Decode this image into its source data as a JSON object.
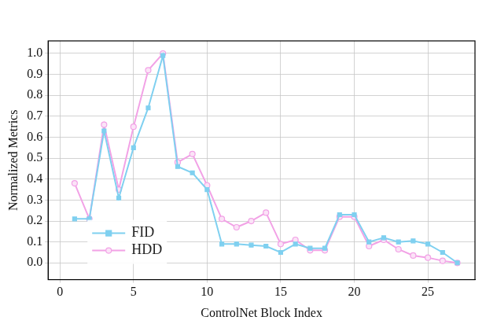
{
  "chart_data": {
    "type": "line",
    "x_label": "ControlNet Block Index",
    "y_label": "Normalized Metrics",
    "x": [
      1,
      2,
      3,
      4,
      5,
      6,
      7,
      8,
      9,
      10,
      11,
      12,
      13,
      14,
      15,
      16,
      17,
      18,
      19,
      20,
      21,
      22,
      23,
      24,
      25,
      26,
      27
    ],
    "series": [
      {
        "name": "FID",
        "color": "#7fd0f0",
        "marker": "square",
        "line_style": "solid",
        "values": [
          0.21,
          0.21,
          0.63,
          0.31,
          0.55,
          0.74,
          0.99,
          0.46,
          0.43,
          0.35,
          0.09,
          0.09,
          0.085,
          0.08,
          0.05,
          0.09,
          0.07,
          0.07,
          0.23,
          0.23,
          0.1,
          0.12,
          0.1,
          0.105,
          0.09,
          0.05,
          0.0
        ]
      },
      {
        "name": "HDD",
        "color": "#f2a2e6",
        "marker": "circle",
        "line_style": "solid",
        "values": [
          0.38,
          0.21,
          0.66,
          0.35,
          0.65,
          0.92,
          1.0,
          0.48,
          0.52,
          0.37,
          0.21,
          0.17,
          0.2,
          0.24,
          0.09,
          0.11,
          0.06,
          0.06,
          0.22,
          0.22,
          0.08,
          0.11,
          0.065,
          0.035,
          0.025,
          0.01,
          0.0
        ]
      }
    ],
    "xlim": [
      -0.8,
      28.2
    ],
    "xticks": [
      0,
      5,
      10,
      15,
      20,
      25
    ],
    "ylim": [
      -0.08,
      1.06
    ],
    "yticks": [
      {
        "value": 0,
        "label": "0.0"
      },
      0.1,
      0.2,
      0.3,
      0.4,
      0.5,
      0.6,
      0.7,
      0.8,
      0.9,
      {
        "value": 1,
        "label": "1.0"
      }
    ],
    "grid": true,
    "legend": "lower left"
  }
}
